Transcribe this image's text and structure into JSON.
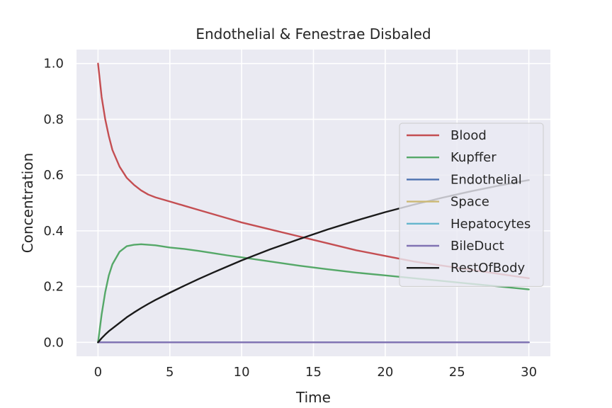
{
  "chart_data": {
    "type": "line",
    "title": "Endothelial & Fenestrae Disbaled",
    "xlabel": "Time",
    "ylabel": "Concentration",
    "xlim": [
      -1.5,
      31.5
    ],
    "ylim": [
      -0.05,
      1.05
    ],
    "xticks": [
      0,
      5,
      10,
      15,
      20,
      25,
      30
    ],
    "yticks": [
      0.0,
      0.2,
      0.4,
      0.6,
      0.8,
      1.0
    ],
    "xtick_labels": [
      "0",
      "5",
      "10",
      "15",
      "20",
      "25",
      "30"
    ],
    "ytick_labels": [
      "0.0",
      "0.2",
      "0.4",
      "0.6",
      "0.8",
      "1.0"
    ],
    "grid": true,
    "legend_position": "right",
    "x": [
      0,
      0.25,
      0.5,
      0.75,
      1,
      1.5,
      2,
      2.5,
      3,
      3.5,
      4,
      5,
      6,
      7,
      8,
      9,
      10,
      12,
      14,
      16,
      18,
      20,
      22,
      24,
      26,
      28,
      30
    ],
    "series": [
      {
        "name": "Blood",
        "color": "#c44e52",
        "values": [
          1.0,
          0.88,
          0.8,
          0.74,
          0.69,
          0.63,
          0.59,
          0.565,
          0.545,
          0.53,
          0.52,
          0.505,
          0.49,
          0.475,
          0.46,
          0.445,
          0.43,
          0.405,
          0.38,
          0.355,
          0.33,
          0.31,
          0.29,
          0.275,
          0.26,
          0.245,
          0.23
        ]
      },
      {
        "name": "Kupffer",
        "color": "#55a868",
        "values": [
          0.0,
          0.1,
          0.18,
          0.24,
          0.28,
          0.325,
          0.345,
          0.35,
          0.352,
          0.35,
          0.348,
          0.34,
          0.335,
          0.328,
          0.32,
          0.312,
          0.305,
          0.29,
          0.275,
          0.262,
          0.25,
          0.24,
          0.23,
          0.22,
          0.21,
          0.2,
          0.19
        ]
      },
      {
        "name": "Endothelial",
        "color": "#4c72b0",
        "values": [
          0,
          0,
          0,
          0,
          0,
          0,
          0,
          0,
          0,
          0,
          0,
          0,
          0,
          0,
          0,
          0,
          0,
          0,
          0,
          0,
          0,
          0,
          0,
          0,
          0,
          0,
          0
        ]
      },
      {
        "name": "Space",
        "color": "#ccb974",
        "values": [
          0,
          0,
          0,
          0,
          0,
          0,
          0,
          0,
          0,
          0,
          0,
          0,
          0,
          0,
          0,
          0,
          0,
          0,
          0,
          0,
          0,
          0,
          0,
          0,
          0,
          0,
          0
        ]
      },
      {
        "name": "Hepatocytes",
        "color": "#64b5cd",
        "values": [
          0,
          0,
          0,
          0,
          0,
          0,
          0,
          0,
          0,
          0,
          0,
          0,
          0,
          0,
          0,
          0,
          0,
          0,
          0,
          0,
          0,
          0,
          0,
          0,
          0,
          0,
          0
        ]
      },
      {
        "name": "BileDuct",
        "color": "#8172b3",
        "values": [
          0,
          0,
          0,
          0,
          0,
          0,
          0,
          0,
          0,
          0,
          0,
          0,
          0,
          0,
          0,
          0,
          0,
          0,
          0,
          0,
          0,
          0,
          0,
          0,
          0,
          0,
          0
        ]
      },
      {
        "name": "RestOfBody",
        "color": "#1a1a1a",
        "values": [
          0.0,
          0.015,
          0.028,
          0.04,
          0.05,
          0.07,
          0.09,
          0.107,
          0.123,
          0.138,
          0.152,
          0.178,
          0.203,
          0.227,
          0.25,
          0.272,
          0.294,
          0.334,
          0.37,
          0.405,
          0.437,
          0.467,
          0.494,
          0.519,
          0.542,
          0.563,
          0.582
        ]
      }
    ]
  }
}
